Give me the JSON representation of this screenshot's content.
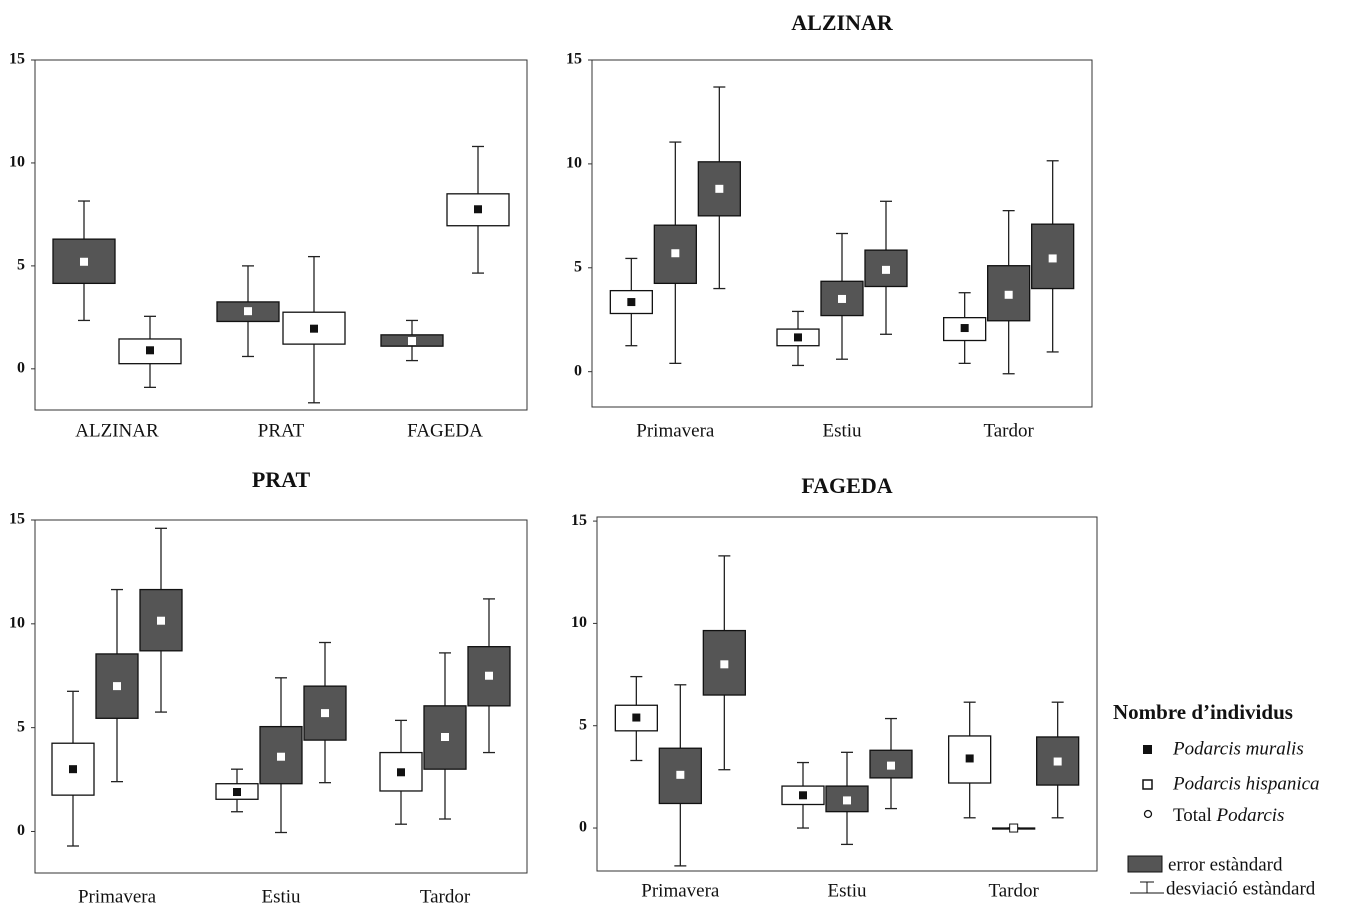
{
  "chart_data": [
    {
      "type": "box",
      "categories": [
        "ALZINAR",
        "PRAT",
        "FAGEDA"
      ],
      "ylim": [
        -2,
        15
      ],
      "yticks": [
        0,
        5,
        10,
        15
      ],
      "series": [
        {
          "fill": "#555555",
          "marker": "#ffffff",
          "boxes": [
            {
              "mean": 5.2,
              "box": [
                4.15,
                6.3
              ],
              "whisker": [
                2.35,
                8.15
              ]
            },
            {
              "mean": 2.8,
              "box": [
                2.3,
                3.25
              ],
              "whisker": [
                0.6,
                5.0
              ]
            },
            {
              "mean": 1.35,
              "box": [
                1.1,
                1.65
              ],
              "whisker": [
                0.4,
                2.35
              ]
            }
          ]
        },
        {
          "fill": "#ffffff",
          "marker": "#111111",
          "boxes": [
            {
              "mean": 0.9,
              "box": [
                0.25,
                1.45
              ],
              "whisker": [
                -0.9,
                2.55
              ]
            },
            {
              "mean": 1.95,
              "box": [
                1.2,
                2.75
              ],
              "whisker": [
                -1.65,
                5.45
              ]
            },
            {
              "mean": 7.75,
              "box": [
                6.95,
                8.5
              ],
              "whisker": [
                4.65,
                10.8
              ]
            }
          ]
        }
      ]
    },
    {
      "type": "box",
      "title": "ALZINAR",
      "categories": [
        "Primavera",
        "Estiu",
        "Tardor"
      ],
      "ylim": [
        -1.7,
        15
      ],
      "yticks": [
        0,
        5,
        10,
        15
      ],
      "series": [
        {
          "fill": "#ffffff",
          "marker": "#111111",
          "boxes": [
            {
              "mean": 3.35,
              "box": [
                2.8,
                3.9
              ],
              "whisker": [
                1.25,
                5.45
              ]
            },
            {
              "mean": 1.65,
              "box": [
                1.25,
                2.05
              ],
              "whisker": [
                0.3,
                2.9
              ]
            },
            {
              "mean": 2.1,
              "box": [
                1.5,
                2.6
              ],
              "whisker": [
                0.4,
                3.8
              ]
            }
          ]
        },
        {
          "fill": "#555555",
          "marker": "#ffffff",
          "boxes": [
            {
              "mean": 5.7,
              "box": [
                4.25,
                7.05
              ],
              "whisker": [
                0.4,
                11.05
              ]
            },
            {
              "mean": 3.5,
              "box": [
                2.7,
                4.35
              ],
              "whisker": [
                0.6,
                6.65
              ]
            },
            {
              "mean": 3.7,
              "box": [
                2.45,
                5.1
              ],
              "whisker": [
                -0.1,
                7.75
              ]
            }
          ]
        },
        {
          "fill": "#555555",
          "marker": "#ffffff",
          "boxes": [
            {
              "mean": 8.8,
              "box": [
                7.5,
                10.1
              ],
              "whisker": [
                4.0,
                13.7
              ]
            },
            {
              "mean": 4.9,
              "box": [
                4.1,
                5.85
              ],
              "whisker": [
                1.8,
                8.2
              ]
            },
            {
              "mean": 5.45,
              "box": [
                4.0,
                7.1
              ],
              "whisker": [
                0.95,
                10.15
              ]
            }
          ]
        }
      ]
    },
    {
      "type": "box",
      "title": "PRAT",
      "categories": [
        "Primavera",
        "Estiu",
        "Tardor"
      ],
      "ylim": [
        -2,
        15
      ],
      "yticks": [
        0,
        5,
        10,
        15
      ],
      "series": [
        {
          "fill": "#ffffff",
          "marker": "#111111",
          "boxes": [
            {
              "mean": 3.0,
              "box": [
                1.75,
                4.25
              ],
              "whisker": [
                -0.7,
                6.75
              ]
            },
            {
              "mean": 1.9,
              "box": [
                1.55,
                2.3
              ],
              "whisker": [
                0.95,
                3.0
              ]
            },
            {
              "mean": 2.85,
              "box": [
                1.95,
                3.8
              ],
              "whisker": [
                0.35,
                5.35
              ]
            }
          ]
        },
        {
          "fill": "#555555",
          "marker": "#ffffff",
          "boxes": [
            {
              "mean": 7.0,
              "box": [
                5.45,
                8.55
              ],
              "whisker": [
                2.4,
                11.65
              ]
            },
            {
              "mean": 3.6,
              "box": [
                2.3,
                5.05
              ],
              "whisker": [
                -0.05,
                7.4
              ]
            },
            {
              "mean": 4.55,
              "box": [
                3.0,
                6.05
              ],
              "whisker": [
                0.6,
                8.6
              ]
            }
          ]
        },
        {
          "fill": "#555555",
          "marker": "#ffffff",
          "boxes": [
            {
              "mean": 10.15,
              "box": [
                8.7,
                11.65
              ],
              "whisker": [
                5.75,
                14.6
              ]
            },
            {
              "mean": 5.7,
              "box": [
                4.4,
                7.0
              ],
              "whisker": [
                2.35,
                9.1
              ]
            },
            {
              "mean": 7.5,
              "box": [
                6.05,
                8.9
              ],
              "whisker": [
                3.8,
                11.2
              ]
            }
          ]
        }
      ]
    },
    {
      "type": "box",
      "title": "FAGEDA",
      "categories": [
        "Primavera",
        "Estiu",
        "Tardor"
      ],
      "ylim": [
        -2.1,
        15.2
      ],
      "yticks": [
        0,
        5,
        10,
        15
      ],
      "series": [
        {
          "fill": "#ffffff",
          "marker": "#111111",
          "boxes": [
            {
              "mean": 5.4,
              "box": [
                4.75,
                6.0
              ],
              "whisker": [
                3.3,
                7.4
              ]
            },
            {
              "mean": 1.6,
              "box": [
                1.15,
                2.05
              ],
              "whisker": [
                0,
                3.2
              ]
            },
            {
              "mean": 3.4,
              "box": [
                2.2,
                4.5
              ],
              "whisker": [
                0.5,
                6.15
              ]
            }
          ]
        },
        {
          "fill": "#555555",
          "marker": "#ffffff",
          "boxes": [
            {
              "mean": 2.6,
              "box": [
                1.2,
                3.9
              ],
              "whisker": [
                -1.85,
                7.0
              ]
            },
            {
              "mean": 1.35,
              "box": [
                0.8,
                2.05
              ],
              "whisker": [
                -0.8,
                3.7
              ]
            },
            {
              "mean": 0,
              "box": [
                0,
                0
              ],
              "whisker": [
                0,
                0
              ]
            }
          ]
        },
        {
          "fill": "#555555",
          "marker": "#ffffff",
          "boxes": [
            {
              "mean": 8.0,
              "box": [
                6.5,
                9.65
              ],
              "whisker": [
                2.85,
                13.3
              ]
            },
            {
              "mean": 3.05,
              "box": [
                2.45,
                3.8
              ],
              "whisker": [
                0.95,
                5.35
              ]
            },
            {
              "mean": 3.25,
              "box": [
                2.1,
                4.45
              ],
              "whisker": [
                0.5,
                6.15
              ]
            }
          ]
        }
      ]
    }
  ],
  "legend": {
    "title": "Nombre d’individus",
    "items": [
      {
        "name": "Podarcis muralis"
      },
      {
        "name": "Podarcis hispanica"
      },
      {
        "prefix": "Total",
        "name": "Podarcis"
      }
    ],
    "error": "error estàndard",
    "deviation": "desviació estàndard"
  }
}
